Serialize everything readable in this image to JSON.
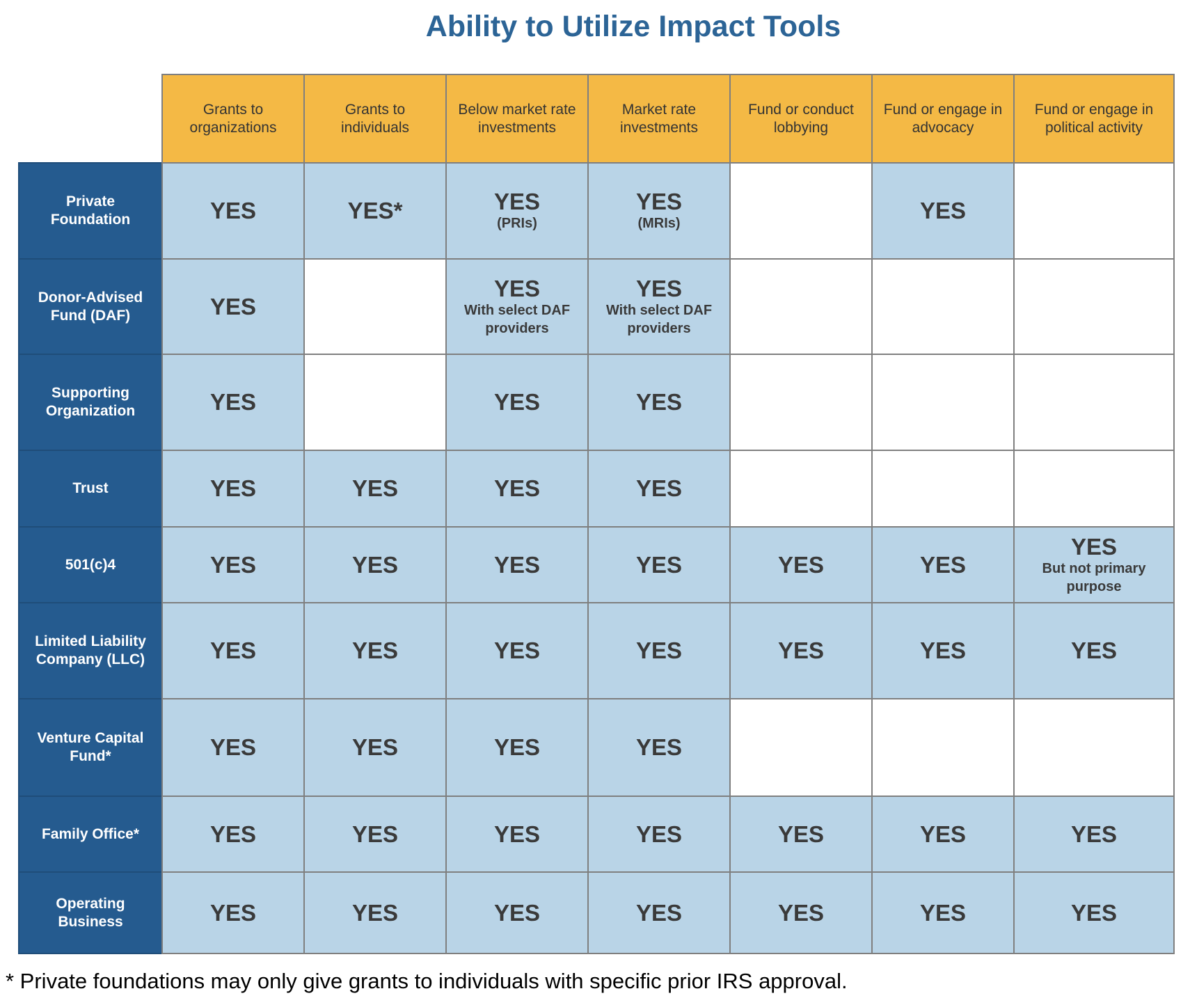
{
  "title": "Ability to Utilize Impact Tools",
  "colors": {
    "title": "#2c6496",
    "header_fill": "#f4b945",
    "row_header_fill": "#255b8f",
    "yes_fill": "#b9d4e7",
    "empty_fill": "#ffffff",
    "border": "#7f7f7f"
  },
  "columns": [
    "Grants to organizations",
    "Grants to individuals",
    "Below market rate investments",
    "Market rate investments",
    "Fund or conduct lobbying",
    "Fund or engage in advocacy",
    "Fund or engage in political activity"
  ],
  "rows": [
    {
      "label": "Private Foundation",
      "cells": [
        {
          "value": "YES",
          "note": ""
        },
        {
          "value": "YES*",
          "note": ""
        },
        {
          "value": "YES",
          "note": "(PRIs)"
        },
        {
          "value": "YES",
          "note": "(MRIs)"
        },
        {
          "value": "",
          "note": ""
        },
        {
          "value": "YES",
          "note": ""
        },
        {
          "value": "",
          "note": ""
        }
      ]
    },
    {
      "label": "Donor-Advised Fund (DAF)",
      "cells": [
        {
          "value": "YES",
          "note": ""
        },
        {
          "value": "",
          "note": ""
        },
        {
          "value": "YES",
          "note": "With select DAF providers"
        },
        {
          "value": "YES",
          "note": "With select DAF providers"
        },
        {
          "value": "",
          "note": ""
        },
        {
          "value": "",
          "note": ""
        },
        {
          "value": "",
          "note": ""
        }
      ]
    },
    {
      "label": "Supporting Organization",
      "cells": [
        {
          "value": "YES",
          "note": ""
        },
        {
          "value": "",
          "note": ""
        },
        {
          "value": "YES",
          "note": ""
        },
        {
          "value": "YES",
          "note": ""
        },
        {
          "value": "",
          "note": ""
        },
        {
          "value": "",
          "note": ""
        },
        {
          "value": "",
          "note": ""
        }
      ]
    },
    {
      "label": "Trust",
      "cells": [
        {
          "value": "YES",
          "note": ""
        },
        {
          "value": "YES",
          "note": ""
        },
        {
          "value": "YES",
          "note": ""
        },
        {
          "value": "YES",
          "note": ""
        },
        {
          "value": "",
          "note": ""
        },
        {
          "value": "",
          "note": ""
        },
        {
          "value": "",
          "note": ""
        }
      ]
    },
    {
      "label": "501(c)4",
      "cells": [
        {
          "value": "YES",
          "note": ""
        },
        {
          "value": "YES",
          "note": ""
        },
        {
          "value": "YES",
          "note": ""
        },
        {
          "value": "YES",
          "note": ""
        },
        {
          "value": "YES",
          "note": ""
        },
        {
          "value": "YES",
          "note": ""
        },
        {
          "value": "YES",
          "note": "But not primary purpose"
        }
      ]
    },
    {
      "label": "Limited Liability Company (LLC)",
      "cells": [
        {
          "value": "YES",
          "note": ""
        },
        {
          "value": "YES",
          "note": ""
        },
        {
          "value": "YES",
          "note": ""
        },
        {
          "value": "YES",
          "note": ""
        },
        {
          "value": "YES",
          "note": ""
        },
        {
          "value": "YES",
          "note": ""
        },
        {
          "value": "YES",
          "note": ""
        }
      ]
    },
    {
      "label": "Venture Capital Fund*",
      "cells": [
        {
          "value": "YES",
          "note": ""
        },
        {
          "value": "YES",
          "note": ""
        },
        {
          "value": "YES",
          "note": ""
        },
        {
          "value": "YES",
          "note": ""
        },
        {
          "value": "",
          "note": ""
        },
        {
          "value": "",
          "note": ""
        },
        {
          "value": "",
          "note": ""
        }
      ]
    },
    {
      "label": "Family Office*",
      "cells": [
        {
          "value": "YES",
          "note": ""
        },
        {
          "value": "YES",
          "note": ""
        },
        {
          "value": "YES",
          "note": ""
        },
        {
          "value": "YES",
          "note": ""
        },
        {
          "value": "YES",
          "note": ""
        },
        {
          "value": "YES",
          "note": ""
        },
        {
          "value": "YES",
          "note": ""
        }
      ]
    },
    {
      "label": "Operating Business",
      "cells": [
        {
          "value": "YES",
          "note": ""
        },
        {
          "value": "YES",
          "note": ""
        },
        {
          "value": "YES",
          "note": ""
        },
        {
          "value": "YES",
          "note": ""
        },
        {
          "value": "YES",
          "note": ""
        },
        {
          "value": "YES",
          "note": ""
        },
        {
          "value": "YES",
          "note": ""
        }
      ]
    }
  ],
  "footnote": "* Private foundations may only give grants to individuals with specific prior IRS approval."
}
